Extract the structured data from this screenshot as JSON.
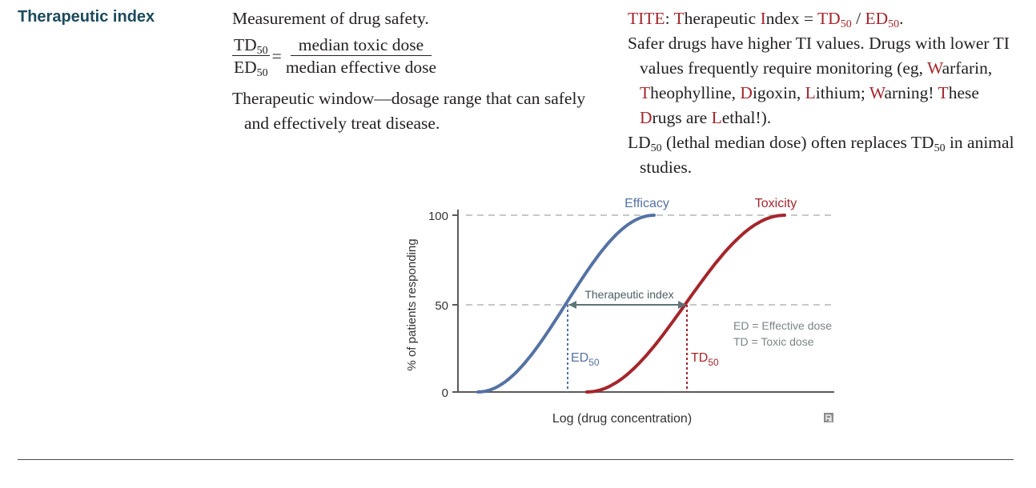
{
  "heading": "Therapeutic index",
  "middle": {
    "line1": "Measurement of drug safety.",
    "formula": {
      "num_left": "TD",
      "num_left_sub": "50",
      "den_left": "ED",
      "den_left_sub": "50",
      "equals": "=",
      "num_right": "median toxic dose",
      "den_right": "median effective dose"
    },
    "window_text": "Therapeutic window—dosage range that can safely and effectively treat disease."
  },
  "right": {
    "tite_line": {
      "p1": "TITE",
      "p2": ": ",
      "p3": "T",
      "p4": "herapeutic ",
      "p5": "I",
      "p6": "ndex = ",
      "p7": "TD",
      "p7_sub": "50",
      "p8": " / ",
      "p9": "ED",
      "p9_sub": "50",
      "p10": "."
    },
    "safer": {
      "p1": "Safer drugs have higher TI values. Drugs with lower TI values frequently require monitoring (eg, ",
      "w": "W",
      "p2": "arfarin, ",
      "t": "T",
      "p3": "heophylline, ",
      "d": "D",
      "p4": "igoxin, ",
      "l": "L",
      "p5": "ithium; ",
      "w2": "W",
      "p6": "arning! ",
      "t2": "T",
      "p7": "hese ",
      "d2": "D",
      "p8": "rugs are ",
      "l2": "L",
      "p9": "ethal!)."
    },
    "ld": {
      "p1": "LD",
      "p1_sub": "50",
      "p2": " (lethal median dose) often replaces TD",
      "p2_sub": "50",
      "p3": " in animal studies."
    }
  },
  "chart_data": {
    "type": "line",
    "title": "",
    "xlabel": "Log (drug concentration)",
    "ylabel": "% of patients responding",
    "yticks": [
      "100",
      "50",
      "0"
    ],
    "ylim": [
      0,
      100
    ],
    "x_axis_numbers": "none",
    "grid": "dashed horizontal at 50 and 100",
    "series": [
      {
        "name": "Efficacy",
        "color": "#5572a4",
        "shape": "sigmoid",
        "midpoint_label": "ED",
        "midpoint_label_sub": "50"
      },
      {
        "name": "Toxicity",
        "color": "#a4262c",
        "shape": "sigmoid",
        "midpoint_label": "TD",
        "midpoint_label_sub": "50"
      }
    ],
    "annotations": {
      "index_label": "Therapeutic index",
      "legend_line1": "ED = Effective dose",
      "legend_line2": "TD = Toxic dose",
      "legend_placement": "right, below 50 line"
    }
  },
  "colors": {
    "heading": "#1c4a5e",
    "mnemonic": "#a4262c",
    "efficacy": "#5572a4",
    "toxicity": "#a4262c",
    "axis": "#5a5a5a",
    "arrow": "#5f7478"
  },
  "watermark_icon": "rx-icon"
}
